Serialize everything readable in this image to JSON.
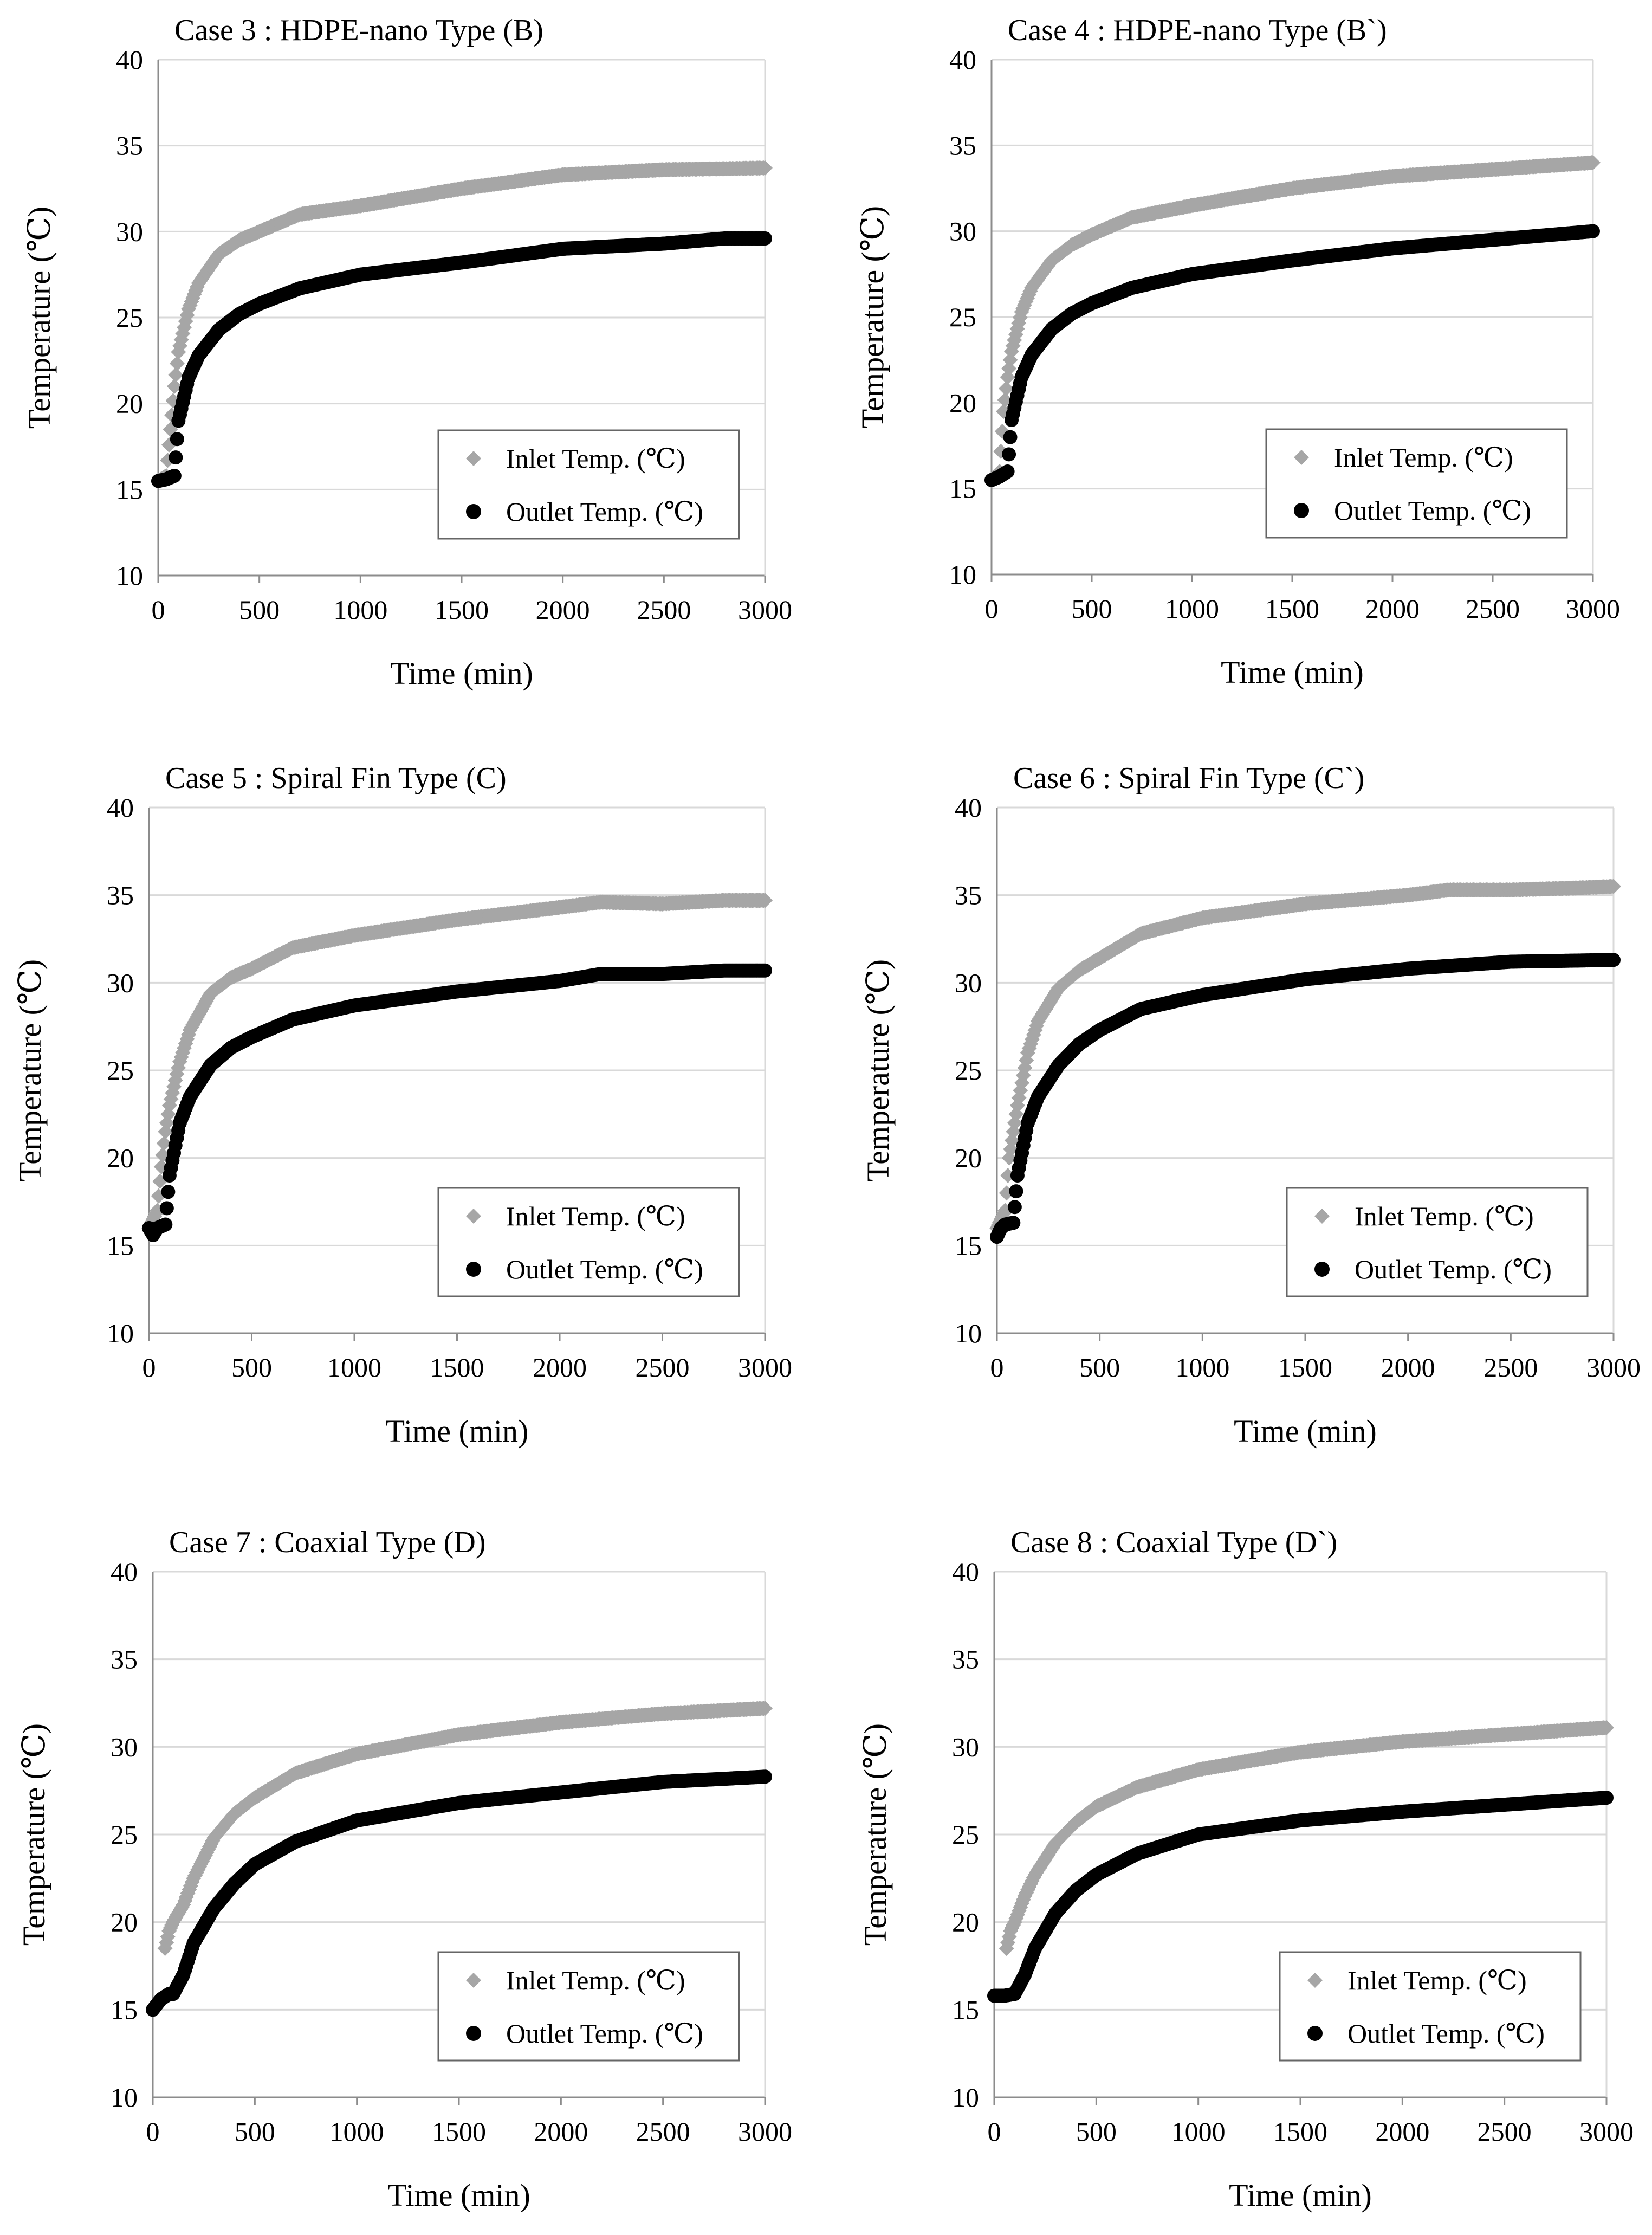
{
  "colors": {
    "inlet": "#a6a6a6",
    "outlet": "#000000",
    "grid": "#d9d9d9",
    "axis": "#8c8c8c"
  },
  "chart_data": [
    {
      "type": "scatter",
      "title": "Case 3 : HDPE-nano Type (B)",
      "xlabel": "Time (min)",
      "ylabel": "Temperature (℃)",
      "xlim": [
        0,
        3000
      ],
      "ylim": [
        10,
        40
      ],
      "xticks": [
        "0",
        "500",
        "1000",
        "1500",
        "2000",
        "2500",
        "3000"
      ],
      "yticks": [
        "10",
        "15",
        "20",
        "25",
        "30",
        "35",
        "40"
      ],
      "grid": "horizontal",
      "legend": "bottom-right",
      "series": [
        {
          "name": "Inlet Temp. (℃)",
          "marker": "diamond",
          "x": [
            0,
            40,
            60,
            80,
            100,
            150,
            200,
            300,
            400,
            500,
            700,
            1000,
            1500,
            2000,
            2500,
            3000
          ],
          "y": [
            15.5,
            15.8,
            18.5,
            21,
            23,
            25.5,
            27,
            28.7,
            29.5,
            30,
            31,
            31.5,
            32.5,
            33.3,
            33.6,
            33.7
          ]
        },
        {
          "name": "Outlet Temp. (℃)",
          "marker": "circle",
          "x": [
            0,
            40,
            80,
            100,
            150,
            200,
            300,
            400,
            500,
            700,
            1000,
            1500,
            2000,
            2500,
            2800,
            3000
          ],
          "y": [
            15.5,
            15.6,
            15.8,
            19,
            21.5,
            22.8,
            24.3,
            25.2,
            25.8,
            26.7,
            27.5,
            28.2,
            29,
            29.3,
            29.6,
            29.6
          ]
        }
      ]
    },
    {
      "type": "scatter",
      "title": "Case 4 : HDPE-nano Type (B`)",
      "xlabel": "Time (min)",
      "ylabel": "Temperature (℃)",
      "xlim": [
        0,
        3000
      ],
      "ylim": [
        10,
        40
      ],
      "xticks": [
        "0",
        "500",
        "1000",
        "1500",
        "2000",
        "2500",
        "3000"
      ],
      "yticks": [
        "10",
        "15",
        "20",
        "25",
        "30",
        "35",
        "40"
      ],
      "grid": "horizontal",
      "legend": "bottom-right",
      "series": [
        {
          "name": "Inlet Temp. (℃)",
          "marker": "diamond",
          "x": [
            0,
            40,
            60,
            80,
            100,
            150,
            200,
            300,
            400,
            500,
            700,
            1000,
            1500,
            2000,
            2500,
            3000
          ],
          "y": [
            15.5,
            16,
            19.5,
            21.5,
            23,
            25.3,
            26.7,
            28.3,
            29.2,
            29.8,
            30.8,
            31.5,
            32.5,
            33.2,
            33.6,
            34
          ]
        },
        {
          "name": "Outlet Temp. (℃)",
          "marker": "circle",
          "x": [
            0,
            40,
            80,
            100,
            150,
            200,
            300,
            400,
            500,
            700,
            1000,
            1500,
            2000,
            2500,
            3000
          ],
          "y": [
            15.5,
            15.7,
            16,
            19,
            21.5,
            22.8,
            24.3,
            25.2,
            25.8,
            26.7,
            27.5,
            28.3,
            29,
            29.5,
            30
          ]
        }
      ]
    },
    {
      "type": "scatter",
      "title": "Case 5 : Spiral Fin Type (C)",
      "xlabel": "Time (min)",
      "ylabel": "Temperature (℃)",
      "xlim": [
        0,
        3000
      ],
      "ylim": [
        10,
        40
      ],
      "xticks": [
        "0",
        "500",
        "1000",
        "1500",
        "2000",
        "2500",
        "3000"
      ],
      "yticks": [
        "10",
        "15",
        "20",
        "25",
        "30",
        "35",
        "40"
      ],
      "grid": "horizontal",
      "legend": "bottom-right",
      "series": [
        {
          "name": "Inlet Temp. (℃)",
          "marker": "diamond",
          "x": [
            0,
            40,
            60,
            80,
            100,
            150,
            200,
            300,
            400,
            500,
            700,
            1000,
            1500,
            2000,
            2200,
            2500,
            2800,
            3000
          ],
          "y": [
            16,
            17,
            19.5,
            21.5,
            23,
            25.5,
            27.3,
            29.4,
            30.3,
            30.8,
            32,
            32.7,
            33.6,
            34.3,
            34.6,
            34.5,
            34.7,
            34.7
          ]
        },
        {
          "name": "Outlet Temp. (℃)",
          "marker": "circle",
          "x": [
            0,
            20,
            40,
            80,
            100,
            150,
            200,
            300,
            400,
            500,
            700,
            1000,
            1500,
            2000,
            2200,
            2500,
            2800,
            3000
          ],
          "y": [
            16,
            15.6,
            16,
            16.2,
            19,
            22,
            23.5,
            25.3,
            26.3,
            26.9,
            27.9,
            28.7,
            29.5,
            30.1,
            30.5,
            30.5,
            30.7,
            30.7
          ]
        }
      ]
    },
    {
      "type": "scatter",
      "title": "Case 6 : Spiral Fin Type (C`)",
      "xlabel": "Time (min)",
      "ylabel": "Temperature (℃)",
      "xlim": [
        0,
        3000
      ],
      "ylim": [
        10,
        40
      ],
      "xticks": [
        "0",
        "500",
        "1000",
        "1500",
        "2000",
        "2500",
        "3000"
      ],
      "yticks": [
        "10",
        "15",
        "20",
        "25",
        "30",
        "35",
        "40"
      ],
      "grid": "horizontal",
      "legend": "bottom-right",
      "series": [
        {
          "name": "Inlet Temp. (℃)",
          "marker": "diamond",
          "x": [
            0,
            40,
            60,
            80,
            100,
            150,
            200,
            300,
            400,
            500,
            700,
            1000,
            1500,
            2000,
            2200,
            2500,
            2800,
            3000
          ],
          "y": [
            16,
            17,
            20,
            21.5,
            23,
            26,
            27.8,
            29.7,
            30.7,
            31.4,
            32.8,
            33.7,
            34.5,
            35,
            35.3,
            35.3,
            35.4,
            35.5
          ]
        },
        {
          "name": "Outlet Temp. (℃)",
          "marker": "circle",
          "x": [
            0,
            20,
            40,
            80,
            100,
            150,
            200,
            300,
            400,
            500,
            700,
            1000,
            1500,
            2000,
            2500,
            3000
          ],
          "y": [
            15.5,
            16,
            16.2,
            16.3,
            19,
            22,
            23.5,
            25.3,
            26.5,
            27.3,
            28.5,
            29.3,
            30.2,
            30.8,
            31.2,
            31.3
          ]
        }
      ]
    },
    {
      "type": "scatter",
      "title": "Case 7 : Coaxial Type (D)",
      "xlabel": "Time (min)",
      "ylabel": "Temperature (℃)",
      "xlim": [
        0,
        3000
      ],
      "ylim": [
        10,
        40
      ],
      "xticks": [
        "0",
        "500",
        "1000",
        "1500",
        "2000",
        "2500",
        "3000"
      ],
      "yticks": [
        "10",
        "15",
        "20",
        "25",
        "30",
        "35",
        "40"
      ],
      "grid": "horizontal",
      "legend": "bottom-right",
      "series": [
        {
          "name": "Inlet Temp. (℃)",
          "marker": "diamond",
          "x": [
            60,
            80,
            100,
            150,
            200,
            300,
            400,
            500,
            700,
            1000,
            1500,
            2000,
            2500,
            3000
          ],
          "y": [
            18.5,
            19.5,
            20,
            21,
            22.5,
            24.8,
            26.2,
            27.1,
            28.5,
            29.6,
            30.7,
            31.4,
            31.9,
            32.2
          ]
        },
        {
          "name": "Outlet Temp. (℃)",
          "marker": "circle",
          "x": [
            0,
            40,
            80,
            100,
            150,
            200,
            300,
            400,
            500,
            700,
            1000,
            1500,
            2000,
            2500,
            3000
          ],
          "y": [
            15,
            15.6,
            15.9,
            15.9,
            17,
            18.8,
            20.8,
            22.2,
            23.3,
            24.6,
            25.8,
            26.8,
            27.4,
            28,
            28.3
          ]
        }
      ]
    },
    {
      "type": "scatter",
      "title": "Case 8 : Coaxial Type (D`)",
      "xlabel": "Time (min)",
      "ylabel": "Temperature (℃)",
      "xlim": [
        0,
        3000
      ],
      "ylim": [
        10,
        40
      ],
      "xticks": [
        "0",
        "500",
        "1000",
        "1500",
        "2000",
        "2500",
        "3000"
      ],
      "yticks": [
        "10",
        "15",
        "20",
        "25",
        "30",
        "35",
        "40"
      ],
      "grid": "horizontal",
      "legend": "bottom-right",
      "series": [
        {
          "name": "Inlet Temp. (℃)",
          "marker": "diamond",
          "x": [
            60,
            80,
            100,
            150,
            200,
            300,
            400,
            500,
            700,
            1000,
            1500,
            2000,
            2500,
            3000
          ],
          "y": [
            18.5,
            19.5,
            20,
            21.5,
            22.7,
            24.5,
            25.7,
            26.6,
            27.7,
            28.7,
            29.7,
            30.3,
            30.7,
            31.1
          ]
        },
        {
          "name": "Outlet Temp. (℃)",
          "marker": "circle",
          "x": [
            0,
            50,
            100,
            150,
            200,
            300,
            400,
            500,
            700,
            1000,
            1500,
            2000,
            2500,
            3000
          ],
          "y": [
            15.8,
            15.8,
            15.9,
            17,
            18.5,
            20.5,
            21.8,
            22.7,
            23.9,
            25,
            25.8,
            26.3,
            26.7,
            27.1
          ]
        }
      ]
    }
  ]
}
